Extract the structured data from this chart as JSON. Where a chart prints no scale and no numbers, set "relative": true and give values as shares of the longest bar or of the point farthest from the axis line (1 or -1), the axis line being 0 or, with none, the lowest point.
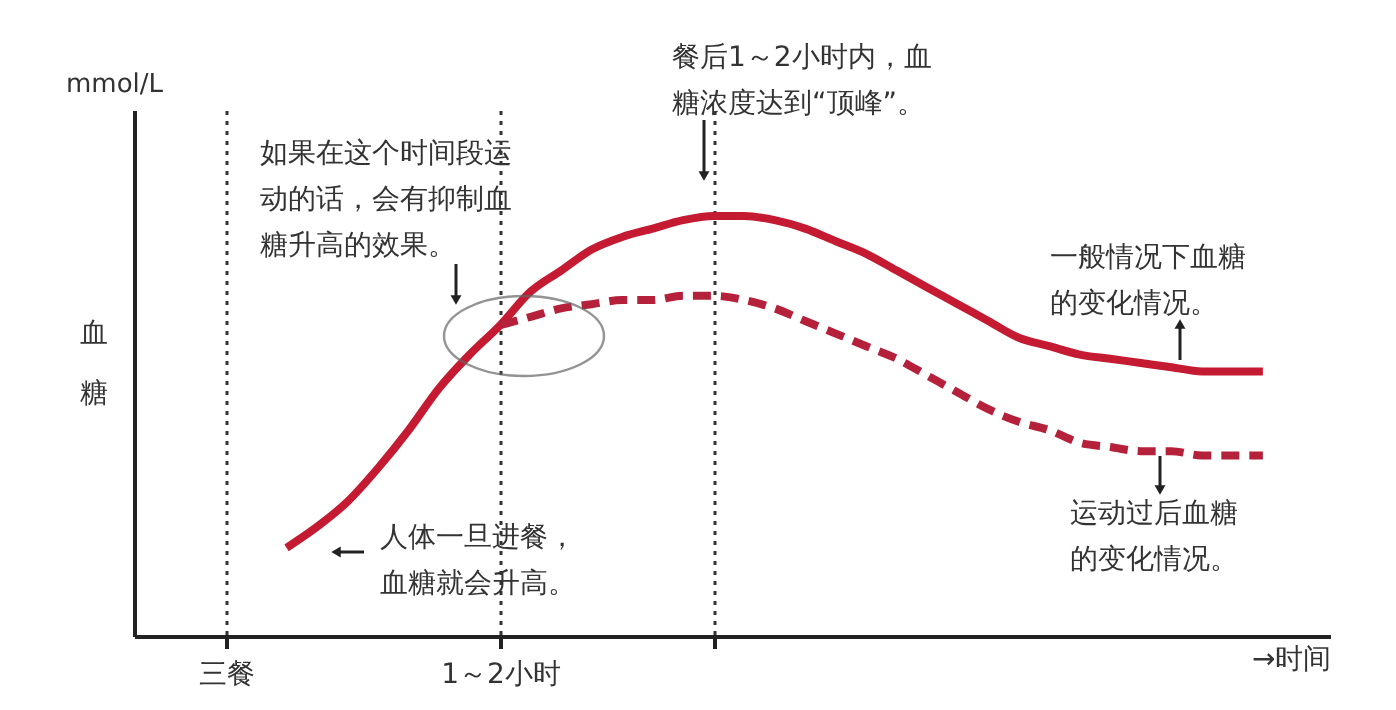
{
  "chart_data": {
    "type": "line",
    "relative": true,
    "ylabel": "血糖",
    "xlabel": "→时间",
    "categories": [
      null,
      null,
      null,
      "三餐",
      null,
      null,
      null,
      null,
      null,
      null,
      null,
      null,
      "1～2小时",
      null,
      null,
      null,
      null,
      null,
      null,
      null,
      null,
      null,
      null,
      null,
      null,
      null,
      null,
      null,
      null,
      null,
      null,
      null,
      null,
      null,
      null,
      null,
      null,
      null,
      null,
      null
    ],
    "tick_labels": "x",
    "grid": "x",
    "series": [
      {
        "color": "#c41a32",
        "line_style": "solid",
        "values": [
          null,
          null,
          null,
          null,
          null,
          0.21,
          0.26,
          0.32,
          0.4,
          0.49,
          0.59,
          0.67,
          0.74,
          0.82,
          0.87,
          0.92,
          0.95,
          0.97,
          0.99,
          1.0,
          1.0,
          0.99,
          0.97,
          0.94,
          0.91,
          0.87,
          0.83,
          0.79,
          0.75,
          0.71,
          0.69,
          0.67,
          0.66,
          0.65,
          0.64,
          0.63,
          0.63,
          0.63,
          null,
          null
        ]
      },
      {
        "color": "#b5203a",
        "line_style": "dashed",
        "values": [
          null,
          null,
          null,
          null,
          null,
          null,
          null,
          null,
          null,
          null,
          null,
          null,
          0.74,
          0.76,
          0.78,
          0.79,
          0.8,
          0.8,
          0.81,
          0.81,
          0.8,
          0.78,
          0.75,
          0.72,
          0.69,
          0.66,
          0.62,
          0.58,
          0.54,
          0.51,
          0.49,
          0.46,
          0.45,
          0.44,
          0.44,
          0.43,
          0.43,
          0.43,
          null,
          null
        ]
      }
    ],
    "annotations": [
      "如果在这个时间段运动的话，会有抑制血糖升高的效果。",
      "人体一旦进餐，血糖就会升高。",
      "餐后1～2小时内，血糖浓度达到“顶峰”。",
      "一般情况下血糖的变化情况。",
      "运动过后血糖的变化情况。",
      "mmol/L"
    ]
  }
}
